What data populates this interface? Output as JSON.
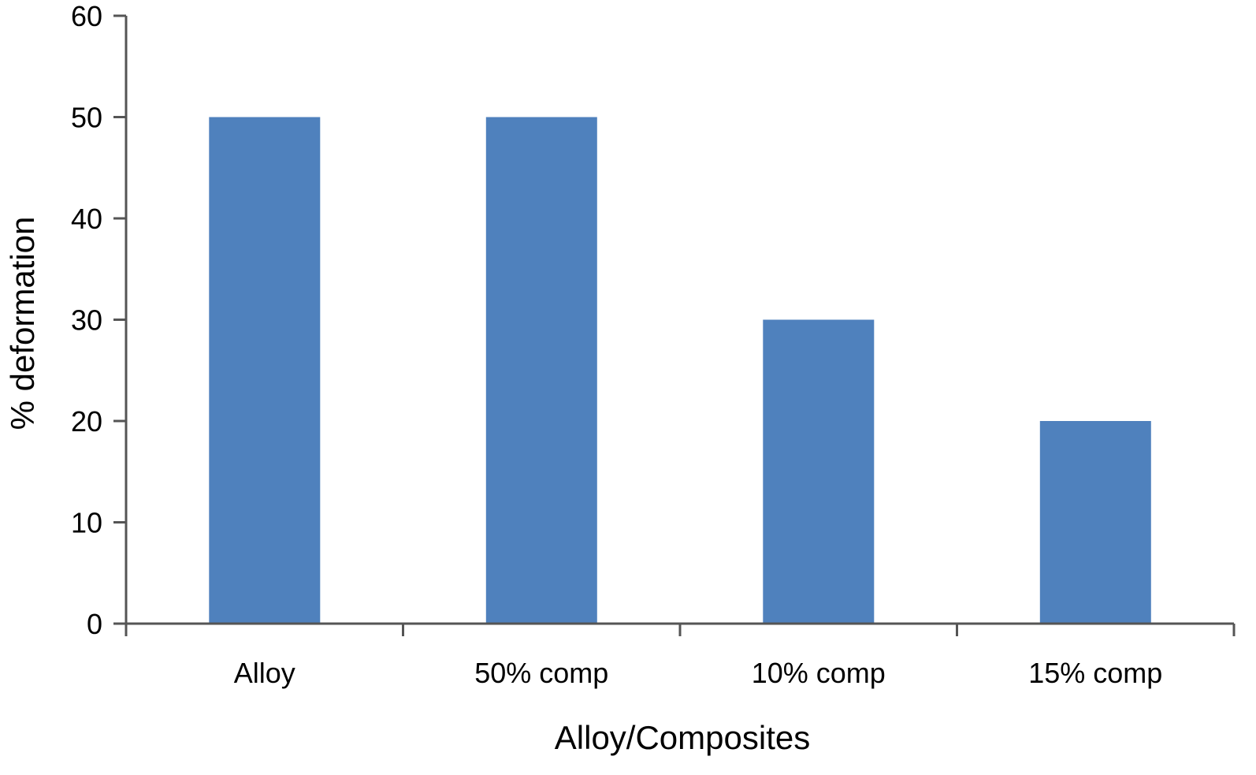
{
  "chart_data": {
    "type": "bar",
    "title": "",
    "xlabel": "Alloy/Composites",
    "ylabel": "% deformation",
    "categories": [
      "Alloy",
      "50% comp",
      "10% comp",
      "15% comp"
    ],
    "series": [
      {
        "values": [
          50,
          50,
          30,
          20
        ]
      }
    ],
    "ylim": [
      0,
      60
    ],
    "yticks": [
      "0",
      "10",
      "20",
      "30",
      "40",
      "50",
      "60"
    ],
    "grid": false,
    "legend": "none",
    "colors": {
      "bar": "#4f81bd",
      "axis": "#555555",
      "text": "#000000"
    }
  }
}
